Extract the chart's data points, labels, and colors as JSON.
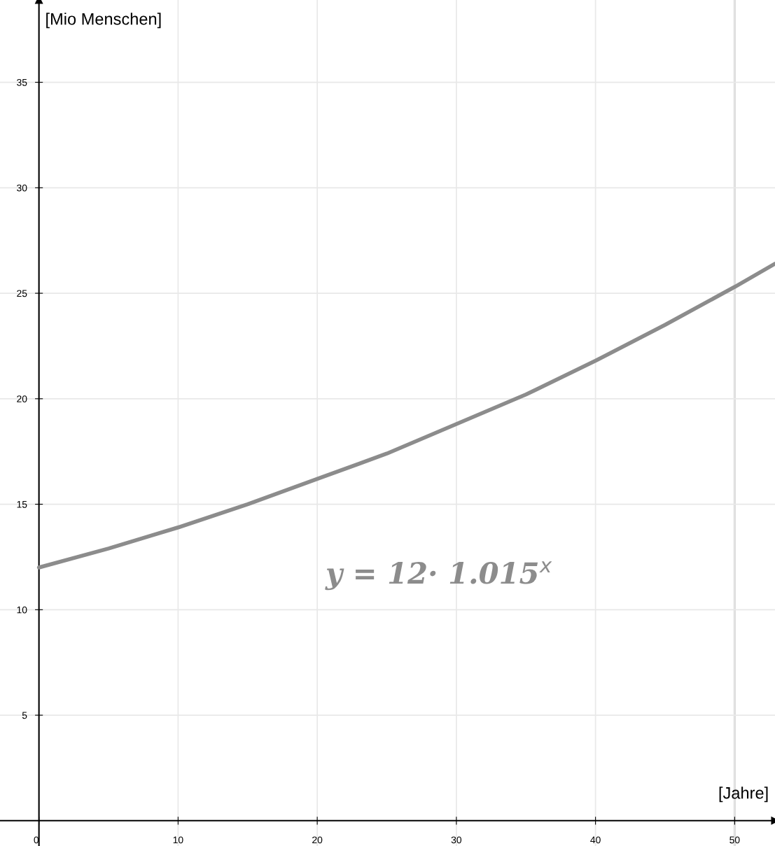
{
  "chart_data": {
    "type": "line",
    "xlabel": "[Jahre]",
    "ylabel": "[Mio Menschen]",
    "x": [
      0,
      5,
      10,
      15,
      20,
      25,
      30,
      35,
      40,
      45,
      50,
      52.9
    ],
    "series": [
      {
        "color": "#8c8c8c",
        "values": [
          12,
          12.9,
          13.9,
          15.0,
          16.2,
          17.4,
          18.8,
          20.2,
          21.8,
          23.5,
          25.3,
          26.4
        ]
      }
    ],
    "xlim": [
      -2.8,
      52.9
    ],
    "ylim": [
      -1.2,
      38.9
    ],
    "xticks": [
      0,
      10,
      20,
      30,
      40,
      50
    ],
    "yticks": [
      5,
      10,
      15,
      20,
      25,
      30,
      35
    ],
    "grid": true,
    "line_style": "solid",
    "marker": "none",
    "ref_lines": [
      {
        "axis": "x",
        "value": 50,
        "color": "#c8c8c8"
      }
    ],
    "annotations": [
      "y = 12· 1.015$^{x}$"
    ]
  }
}
